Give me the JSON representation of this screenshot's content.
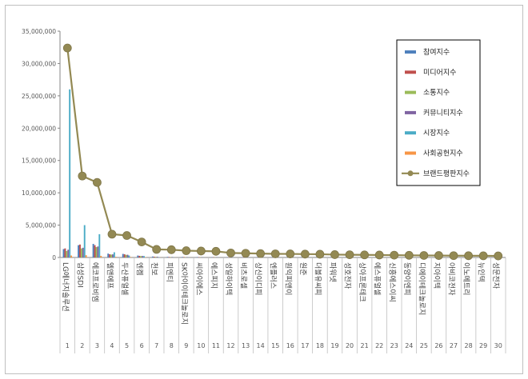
{
  "chart_data": {
    "type": "bar",
    "title": "",
    "xlabel": "",
    "ylabel": "",
    "ylim": [
      0,
      35000000
    ],
    "yticks": [
      "0",
      "5,000,000",
      "10,000,000",
      "15,000,000",
      "20,000,000",
      "25,000,000",
      "30,000,000",
      "35,000,000"
    ],
    "ytick_values": [
      0,
      5000000,
      10000000,
      15000000,
      20000000,
      25000000,
      30000000,
      35000000
    ],
    "grid": false,
    "legend_position": "top-right",
    "rank_labels": [
      "1",
      "2",
      "3",
      "4",
      "5",
      "6",
      "7",
      "8",
      "9",
      "10",
      "11",
      "12",
      "13",
      "14",
      "15",
      "16",
      "17",
      "18",
      "19",
      "20",
      "21",
      "22",
      "23",
      "24",
      "25",
      "26",
      "27",
      "28",
      "29",
      "30"
    ],
    "categories": [
      "LG에너지솔루션",
      "삼성SDI",
      "에코프로비엠",
      "엘앤에프",
      "두산퓨얼셀",
      "엔켐",
      "천보",
      "피엔티",
      "SK아이이테크놀로지",
      "씨아이에스",
      "에스피지",
      "성일하이텍",
      "비츠로셀",
      "상신이디피",
      "엔플러스",
      "원익피앤이",
      "원준",
      "더블유씨피",
      "파워넷",
      "성호전자",
      "상아프론테크",
      "에스퓨얼셀",
      "신흥에스이씨",
      "동양이엔피",
      "디에이테크놀로지",
      "지아이텍",
      "아비코전자",
      "이노메트리",
      "뉴인텍",
      "성문전자"
    ],
    "series": [
      {
        "name": "참여지수",
        "color": "#4f81bd",
        "values": [
          1300000,
          1900000,
          2100000,
          600000,
          550000,
          300000,
          150000,
          90000,
          80000,
          70000,
          60000,
          50000,
          40000,
          40000,
          35000,
          30000,
          30000,
          25000,
          25000,
          20000,
          20000,
          18000,
          16000,
          15000,
          14000,
          12000,
          12000,
          10000,
          10000,
          8000
        ]
      },
      {
        "name": "미디어지수",
        "color": "#c0504d",
        "values": [
          1400000,
          2000000,
          1900000,
          500000,
          500000,
          250000,
          120000,
          80000,
          70000,
          60000,
          50000,
          40000,
          35000,
          30000,
          30000,
          25000,
          25000,
          20000,
          20000,
          18000,
          16000,
          15000,
          14000,
          12000,
          12000,
          10000,
          10000,
          9000,
          8000,
          7000
        ]
      },
      {
        "name": "소통지수",
        "color": "#9bbb59",
        "values": [
          1000000,
          1400000,
          1600000,
          450000,
          400000,
          220000,
          100000,
          70000,
          60000,
          50000,
          45000,
          40000,
          30000,
          30000,
          25000,
          22000,
          20000,
          18000,
          16000,
          15000,
          14000,
          12000,
          11000,
          10000,
          9000,
          8000,
          8000,
          7000,
          6000,
          5000
        ]
      },
      {
        "name": "커뮤니티지수",
        "color": "#8064a2",
        "values": [
          1200000,
          1500000,
          1700000,
          480000,
          420000,
          230000,
          110000,
          75000,
          65000,
          55000,
          48000,
          42000,
          32000,
          30000,
          27000,
          24000,
          22000,
          19000,
          17000,
          16000,
          15000,
          13000,
          12000,
          11000,
          10000,
          9000,
          8500,
          7500,
          6500,
          5500
        ]
      },
      {
        "name": "시장지수",
        "color": "#4bacc6",
        "values": [
          26000000,
          5000000,
          3600000,
          800000,
          300000,
          220000,
          40000,
          30000,
          25000,
          20000,
          18000,
          16000,
          14000,
          13000,
          12000,
          11000,
          10000,
          9000,
          8500,
          8000,
          7500,
          7000,
          6500,
          6000,
          5500,
          5000,
          4800,
          4500,
          4000,
          3500
        ]
      },
      {
        "name": "사회공헌지수",
        "color": "#f79646",
        "values": [
          300000,
          350000,
          250000,
          100000,
          80000,
          50000,
          20000,
          15000,
          12000,
          10000,
          9000,
          8000,
          7000,
          6500,
          6000,
          5500,
          5000,
          4500,
          4000,
          3800,
          3500,
          3200,
          3000,
          2800,
          2600,
          2400,
          2200,
          2000,
          1800,
          1600
        ]
      }
    ],
    "line": {
      "name": "브랜드평판지수",
      "color": "#938953",
      "marker_color": "#938953",
      "values": [
        32400000,
        12600000,
        11600000,
        3600000,
        3400000,
        2400000,
        1250000,
        1200000,
        1050000,
        1000000,
        950000,
        700000,
        650000,
        600000,
        560000,
        550000,
        520000,
        500000,
        440000,
        420000,
        400000,
        380000,
        360000,
        330000,
        310000,
        300000,
        280000,
        270000,
        260000,
        240000
      ]
    }
  }
}
